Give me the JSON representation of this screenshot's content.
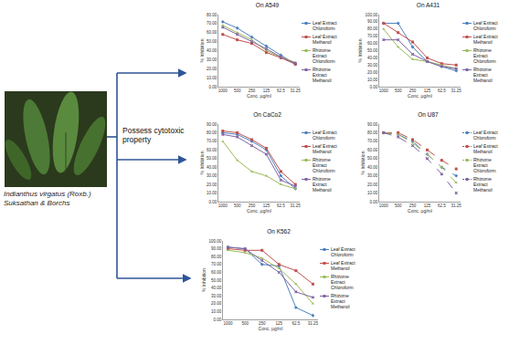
{
  "diagram": {
    "arrow_label": "Possess cytotoxic property",
    "photo_caption": "Indianthus virgatus (Roxb.) Suksathan & Borchs"
  },
  "chart_data": [
    {
      "type": "line",
      "title": "On A549",
      "x_label": "Conc. µg/ml",
      "y_label": "% Inhibition",
      "categories": [
        "1000",
        "500",
        "250",
        "125",
        "62.5",
        "31.25"
      ],
      "series": [
        {
          "name": "Leaf Extract Chloroform",
          "color": "#4f81bd",
          "marker": "diamond",
          "values": [
            72,
            65,
            55,
            45,
            35,
            25
          ]
        },
        {
          "name": "Leaf Extract Methanol",
          "color": "#c0504d",
          "marker": "square",
          "values": [
            58,
            52,
            48,
            38,
            32,
            25
          ]
        },
        {
          "name": "Rhizome Extract Chloroform",
          "color": "#9bbb59",
          "marker": "triangle-up",
          "values": [
            68,
            60,
            52,
            40,
            33,
            27
          ]
        },
        {
          "name": "Rhizome Extract Methanol",
          "color": "#8064a2",
          "marker": "x",
          "values": [
            66,
            58,
            50,
            42,
            33,
            26
          ]
        }
      ],
      "ylim": [
        0,
        80
      ],
      "yticks": [
        {
          "value": 0,
          "label": "0.00"
        },
        {
          "value": 10,
          "label": "10.00"
        },
        {
          "value": 20,
          "label": "20.00"
        },
        {
          "value": 30,
          "label": "30.00"
        },
        {
          "value": 40,
          "label": "40.00"
        },
        {
          "value": 50,
          "label": "50.00"
        },
        {
          "value": 60,
          "label": "60.00"
        },
        {
          "value": 70,
          "label": "70.00"
        },
        {
          "value": 80,
          "label": "80.00"
        }
      ],
      "grid": false,
      "legend": "right"
    },
    {
      "type": "line",
      "title": "On A431",
      "x_label": "Conc. µg/ml",
      "y_label": "% Inhibition",
      "categories": [
        "1000",
        "500",
        "250",
        "125",
        "62.5",
        "31.25"
      ],
      "series": [
        {
          "name": "Leaf Extract Chloroform",
          "color": "#4f81bd",
          "marker": "diamond",
          "values": [
            88,
            88,
            55,
            35,
            28,
            22
          ]
        },
        {
          "name": "Leaf Extract Methanol",
          "color": "#c0504d",
          "marker": "square",
          "values": [
            88,
            75,
            62,
            40,
            32,
            30
          ]
        },
        {
          "name": "Rhizome Extract Chloroform",
          "color": "#9bbb59",
          "marker": "triangle-up",
          "values": [
            80,
            55,
            38,
            35,
            30,
            25
          ]
        },
        {
          "name": "Rhizome Extract Methanol",
          "color": "#8064a2",
          "marker": "x",
          "values": [
            65,
            65,
            45,
            35,
            28,
            25
          ]
        }
      ],
      "ylim": [
        0,
        100
      ],
      "yticks": [
        {
          "value": 0,
          "label": "0.00"
        },
        {
          "value": 10,
          "label": "10.00"
        },
        {
          "value": 20,
          "label": "20.00"
        },
        {
          "value": 30,
          "label": "30.00"
        },
        {
          "value": 40,
          "label": "40.00"
        },
        {
          "value": 50,
          "label": "50.00"
        },
        {
          "value": 60,
          "label": "60.00"
        },
        {
          "value": 70,
          "label": "70.00"
        },
        {
          "value": 80,
          "label": "80.00"
        },
        {
          "value": 90,
          "label": "90.00"
        },
        {
          "value": 100,
          "label": "100.00"
        }
      ],
      "grid": false,
      "legend": "right"
    },
    {
      "type": "line",
      "title": "On CaCo2",
      "x_label": "Conc. µg/ml",
      "y_label": "% Inhibition",
      "categories": [
        "1000",
        "500",
        "250",
        "125",
        "62.5",
        "31.25"
      ],
      "series": [
        {
          "name": "Leaf Extract Chloroform",
          "color": "#4f81bd",
          "marker": "diamond",
          "values": [
            80,
            78,
            70,
            60,
            30,
            15
          ]
        },
        {
          "name": "Leaf Extract Methanol",
          "color": "#c0504d",
          "marker": "square",
          "values": [
            82,
            80,
            72,
            62,
            35,
            20
          ]
        },
        {
          "name": "Rhizome Extract Chloroform",
          "color": "#9bbb59",
          "marker": "triangle-up",
          "values": [
            70,
            48,
            35,
            30,
            20,
            15
          ]
        },
        {
          "name": "Rhizome Extract Methanol",
          "color": "#8064a2",
          "marker": "x",
          "values": [
            78,
            75,
            65,
            55,
            25,
            18
          ]
        }
      ],
      "ylim": [
        0,
        90
      ],
      "yticks": [
        {
          "value": 0,
          "label": "0.00"
        },
        {
          "value": 10,
          "label": "10.00"
        },
        {
          "value": 20,
          "label": "20.00"
        },
        {
          "value": 30,
          "label": "30.00"
        },
        {
          "value": 40,
          "label": "40.00"
        },
        {
          "value": 50,
          "label": "50.00"
        },
        {
          "value": 60,
          "label": "60.00"
        },
        {
          "value": 70,
          "label": "70.00"
        },
        {
          "value": 80,
          "label": "80.00"
        },
        {
          "value": 90,
          "label": "90.00"
        }
      ],
      "grid": false,
      "legend": "right"
    },
    {
      "type": "line",
      "title": "On U87",
      "x_label": "Conc. µg/ml",
      "y_label": "% Inhibition",
      "categories": [
        "1000",
        "500",
        "250",
        "125",
        "62.5",
        "31.25"
      ],
      "series": [
        {
          "name": "Leaf Extract Chloroform",
          "color": "#4f81bd",
          "marker": "diamond",
          "line_style": "dash",
          "values": [
            80,
            78,
            70,
            55,
            40,
            30
          ]
        },
        {
          "name": "Leaf Extract Methanol",
          "color": "#c0504d",
          "marker": "square",
          "line_style": "dash",
          "values": [
            80,
            80,
            72,
            60,
            48,
            38
          ]
        },
        {
          "name": "Rhizome Extract Chloroform",
          "color": "#9bbb59",
          "marker": "triangle-up",
          "line_style": "dash",
          "values": [
            80,
            78,
            68,
            55,
            40,
            22
          ]
        },
        {
          "name": "Rhizome Extract Methanol",
          "color": "#8064a2",
          "marker": "x",
          "line_style": "dash",
          "values": [
            80,
            75,
            65,
            50,
            32,
            10
          ]
        }
      ],
      "ylim": [
        0,
        90
      ],
      "yticks": [
        {
          "value": 0,
          "label": "0.00"
        },
        {
          "value": 10,
          "label": "10.00"
        },
        {
          "value": 20,
          "label": "20.00"
        },
        {
          "value": 30,
          "label": "30.00"
        },
        {
          "value": 40,
          "label": "40.00"
        },
        {
          "value": 50,
          "label": "50.00"
        },
        {
          "value": 60,
          "label": "60.00"
        },
        {
          "value": 70,
          "label": "70.00"
        },
        {
          "value": 80,
          "label": "80.00"
        },
        {
          "value": 90,
          "label": "90.00"
        }
      ],
      "grid": false,
      "legend": "right"
    },
    {
      "type": "line",
      "title": "On K562",
      "x_label": "Conc. µg/ml",
      "y_label": "% Inhibition",
      "categories": [
        "1000",
        "500",
        "250",
        "125",
        "62.5",
        "31.25"
      ],
      "series": [
        {
          "name": "Leaf Extract Chloroform",
          "color": "#4f81bd",
          "marker": "diamond",
          "values": [
            92,
            90,
            70,
            68,
            15,
            5
          ]
        },
        {
          "name": "Leaf Extract Methanol",
          "color": "#c0504d",
          "marker": "square",
          "values": [
            90,
            88,
            88,
            70,
            62,
            45
          ]
        },
        {
          "name": "Rhizome Extract Chloroform",
          "color": "#9bbb59",
          "marker": "triangle-up",
          "values": [
            88,
            85,
            78,
            65,
            45,
            20
          ]
        },
        {
          "name": "Rhizome Extract Methanol",
          "color": "#8064a2",
          "marker": "x",
          "values": [
            92,
            90,
            75,
            60,
            35,
            28
          ]
        }
      ],
      "ylim": [
        0,
        100
      ],
      "yticks": [
        {
          "value": 0,
          "label": "0.00"
        },
        {
          "value": 10,
          "label": "10.00"
        },
        {
          "value": 20,
          "label": "20.00"
        },
        {
          "value": 30,
          "label": "30.00"
        },
        {
          "value": 40,
          "label": "40.00"
        },
        {
          "value": 50,
          "label": "50.00"
        },
        {
          "value": 60,
          "label": "60.00"
        },
        {
          "value": 70,
          "label": "70.00"
        },
        {
          "value": 80,
          "label": "80.00"
        },
        {
          "value": 90,
          "label": "90.00"
        },
        {
          "value": 100,
          "label": "100.00"
        }
      ],
      "grid": false,
      "legend": "right"
    }
  ]
}
